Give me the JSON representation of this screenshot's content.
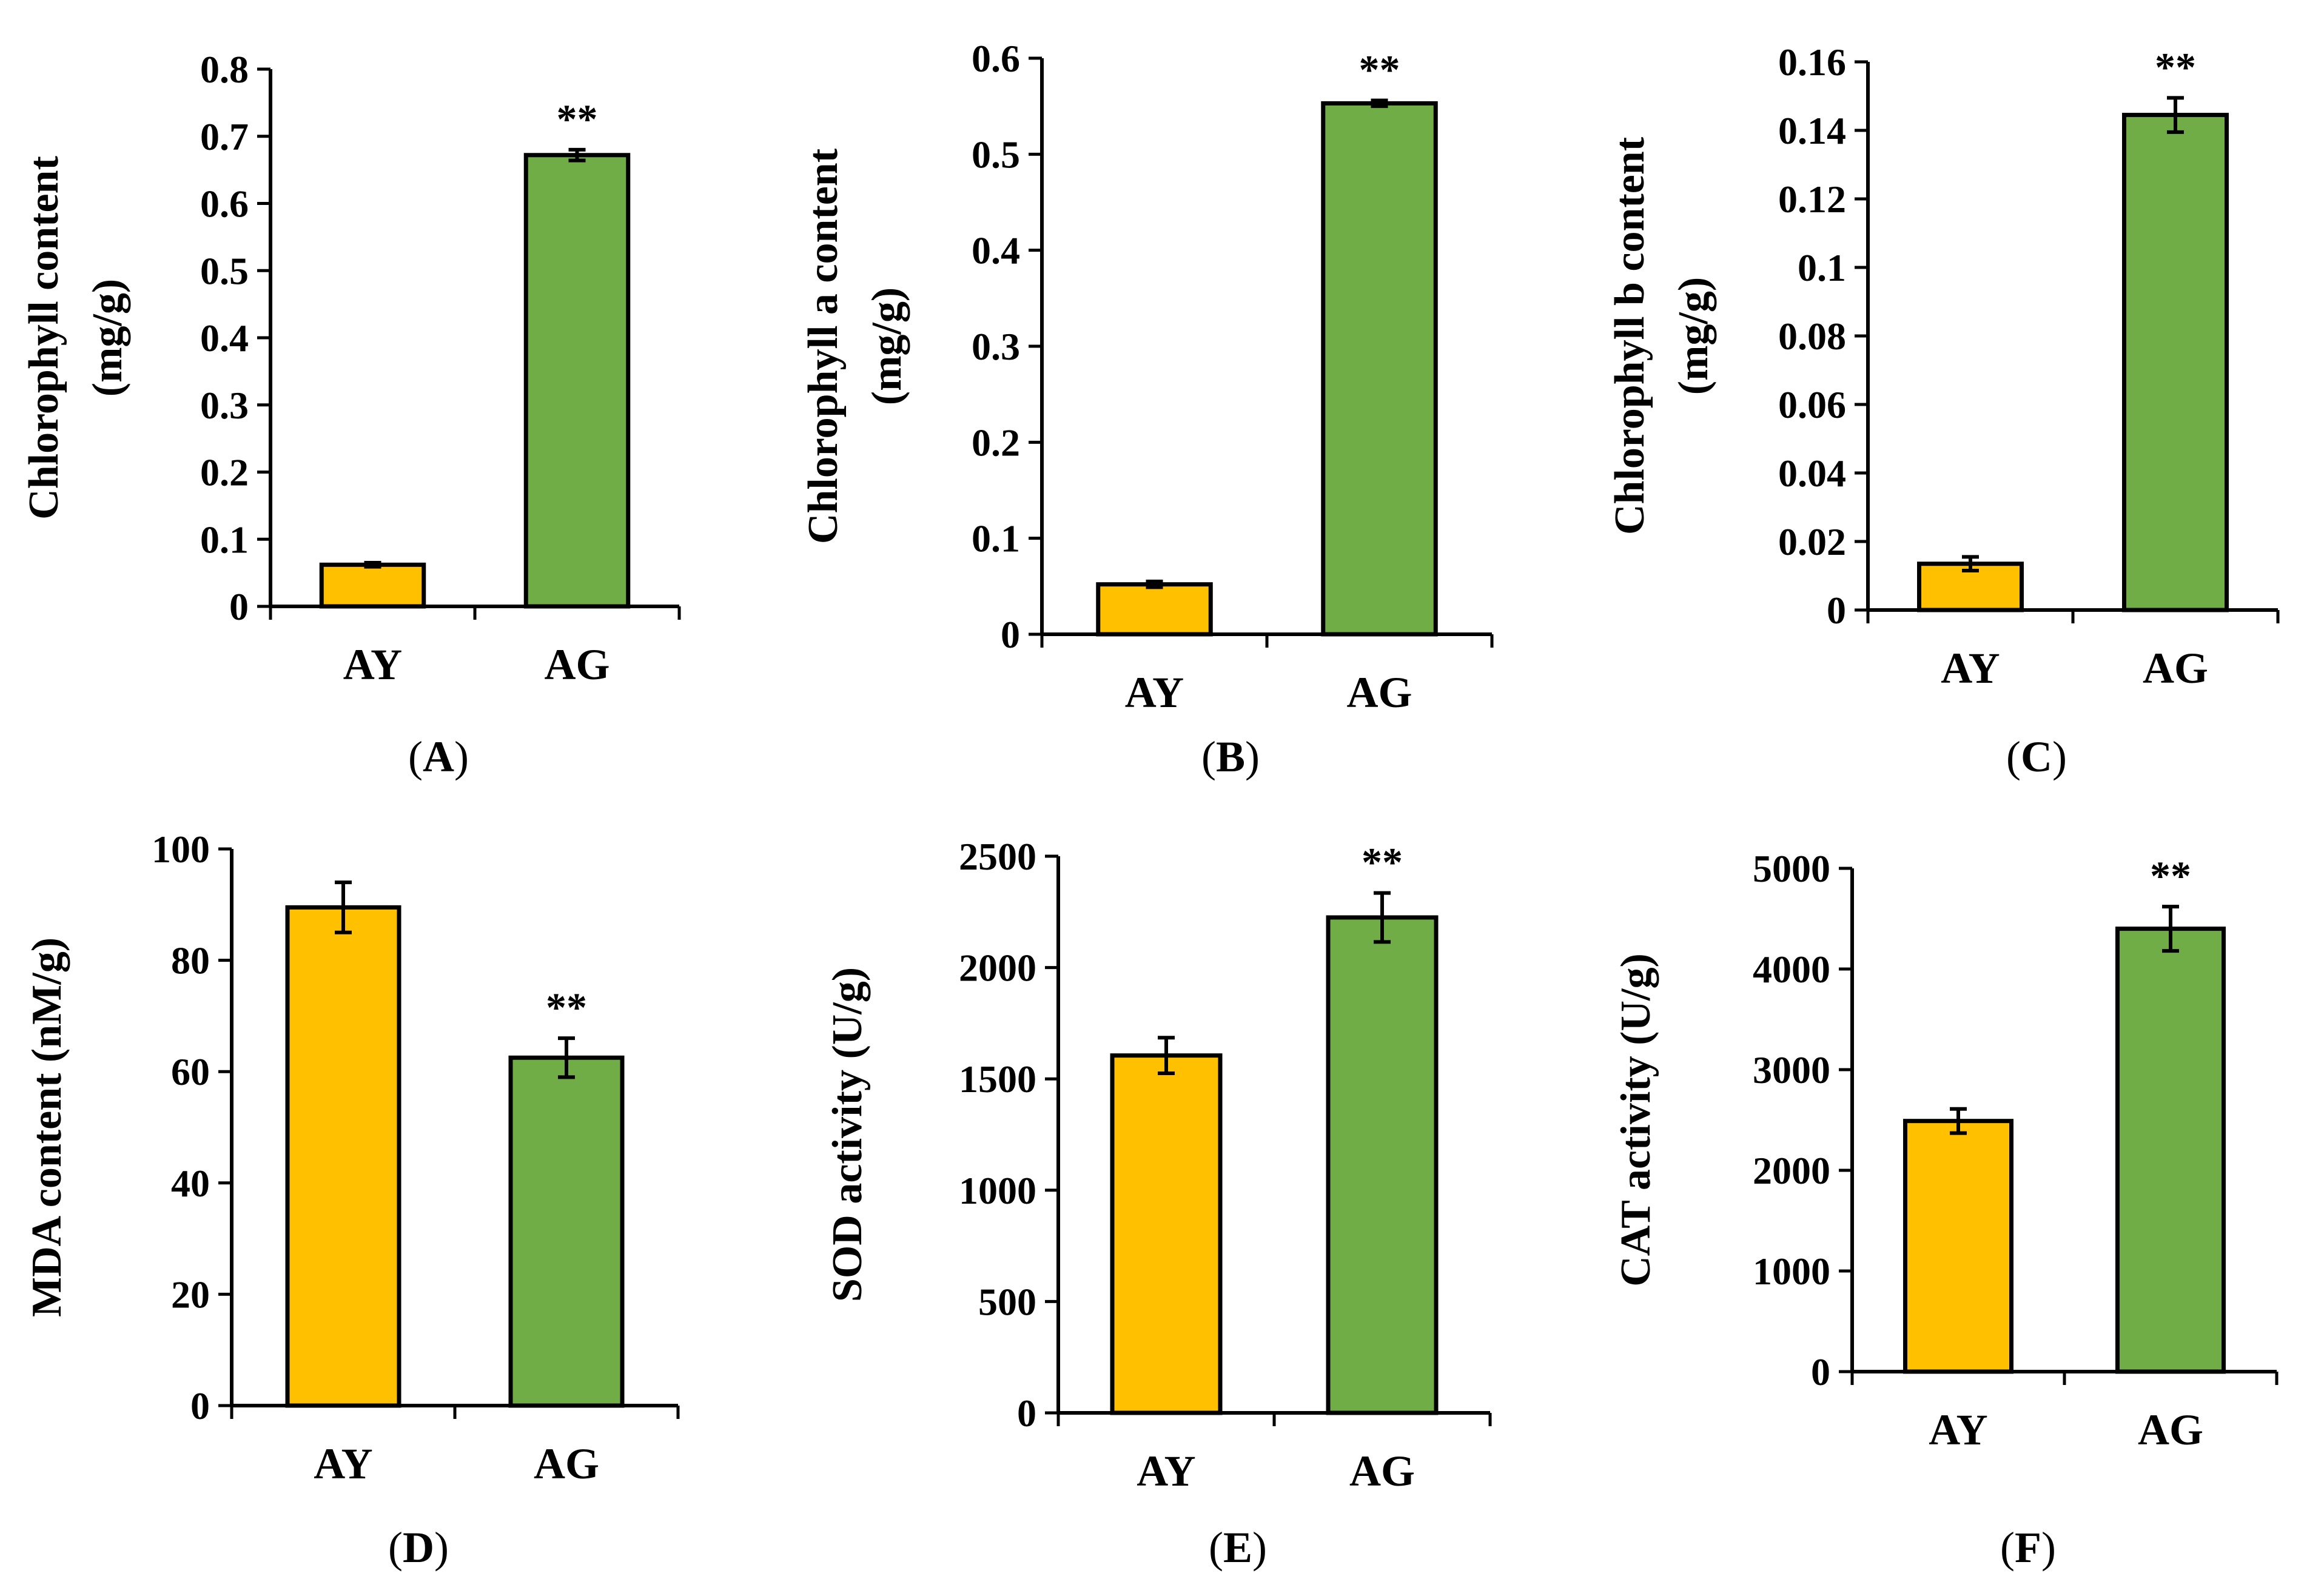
{
  "colors": {
    "AY": "#FFC000",
    "AG": "#70AD47",
    "axis": "#000000"
  },
  "chart_data": [
    {
      "panel": "A",
      "label_prefix": "(",
      "label_suffix": ")",
      "type": "bar",
      "ylabel": [
        "Chlorophyll  content",
        "(mg/g)"
      ],
      "categories": [
        "AY",
        "AG"
      ],
      "values": [
        0.062,
        0.672
      ],
      "errors": [
        0.003,
        0.008
      ],
      "significance": [
        "",
        "**"
      ],
      "ylim": [
        0,
        0.8
      ],
      "yticks": [
        "0",
        "0.1",
        "0.2",
        "0.3",
        "0.4",
        "0.5",
        "0.6",
        "0.7",
        "0.8"
      ]
    },
    {
      "panel": "B",
      "label_prefix": "(",
      "label_suffix": ")",
      "type": "bar",
      "ylabel": [
        "Chlorophyll  a content",
        "(mg/g)"
      ],
      "categories": [
        "AY",
        "AG"
      ],
      "values": [
        0.052,
        0.553
      ],
      "errors": [
        0.003,
        0.003
      ],
      "significance": [
        "",
        "**"
      ],
      "ylim": [
        0,
        0.6
      ],
      "yticks": [
        "0",
        "0.1",
        "0.2",
        "0.3",
        "0.4",
        "0.5",
        "0.6"
      ]
    },
    {
      "panel": "C",
      "label_prefix": "(",
      "label_suffix": ")",
      "type": "bar",
      "ylabel": [
        "Chlorophyll  b content",
        "(mg/g)"
      ],
      "categories": [
        "AY",
        "AG"
      ],
      "values": [
        0.0135,
        0.1445
      ],
      "errors": [
        0.002,
        0.005
      ],
      "significance": [
        "",
        "**"
      ],
      "ylim": [
        0,
        0.16
      ],
      "yticks": [
        "0",
        "0.02",
        "0.04",
        "0.06",
        "0.08",
        "0.1",
        "0.12",
        "0.14",
        "0.16"
      ]
    },
    {
      "panel": "D",
      "label_prefix": "(",
      "label_suffix": ")",
      "type": "bar",
      "ylabel": [
        "MDA content (nM/g)"
      ],
      "categories": [
        "AY",
        "AG"
      ],
      "values": [
        89.5,
        62.5
      ],
      "errors": [
        4.5,
        3.5
      ],
      "significance": [
        "",
        "**"
      ],
      "ylim": [
        0,
        100
      ],
      "yticks": [
        "0",
        "20",
        "40",
        "60",
        "80",
        "100"
      ]
    },
    {
      "panel": "E",
      "label_prefix": "(",
      "label_suffix": ")",
      "type": "bar",
      "ylabel": [
        "SOD activity (U/g)"
      ],
      "categories": [
        "AY",
        "AG"
      ],
      "values": [
        1605,
        2225
      ],
      "errors": [
        80,
        110
      ],
      "significance": [
        "",
        "**"
      ],
      "ylim": [
        0,
        2500
      ],
      "yticks": [
        "0",
        "500",
        "1000",
        "1500",
        "2000",
        "2500"
      ]
    },
    {
      "panel": "F",
      "label_prefix": "(",
      "label_suffix": ")",
      "type": "bar",
      "ylabel": [
        "CAT activity (U/g)"
      ],
      "categories": [
        "AY",
        "AG"
      ],
      "values": [
        2490,
        4400
      ],
      "errors": [
        120,
        220
      ],
      "significance": [
        "",
        "**"
      ],
      "ylim": [
        0,
        5000
      ],
      "yticks": [
        "0",
        "1000",
        "2000",
        "3000",
        "4000",
        "5000"
      ]
    }
  ]
}
